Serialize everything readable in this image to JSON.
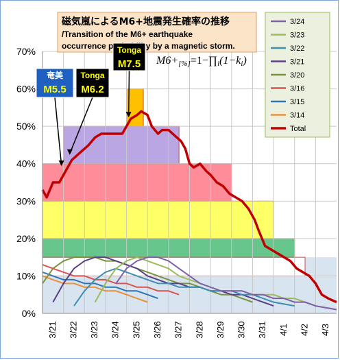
{
  "chart_data": {
    "type": "line",
    "title": "磁気嵐によるM6+地震発生確率の推移",
    "subtitle": "/Transition of the M6+ earthquake occurrence probability by a magnetic storm.",
    "formula": "M6+[%]=1−∏i(1−ki)",
    "formula_parts": {
      "main": "M6+",
      "sub": "[%]",
      "eq": "=1−∏",
      "sub2": "i",
      "tail": "(1−k",
      "sub3": "i",
      "end": ")"
    },
    "ylim": [
      0,
      70
    ],
    "y_ticks": [
      "0%",
      "10%",
      "20%",
      "30%",
      "40%",
      "50%",
      "60%",
      "70%"
    ],
    "x_ticks": [
      "3/21",
      "3/22",
      "3/23",
      "3/24",
      "3/25",
      "3/26",
      "3/27",
      "3/28",
      "3/29",
      "3/30",
      "3/31",
      "4/1",
      "4/2",
      "4/3"
    ],
    "x_tick_positions": [
      0.5,
      1.5,
      2.5,
      3.5,
      4.5,
      5.5,
      6.5,
      7.5,
      8.5,
      9.5,
      10.5,
      11.5,
      12.5,
      13.5
    ],
    "xlim": [
      0,
      14
    ],
    "grid": true,
    "legend_position": "top-right",
    "legend": [
      {
        "name": "3/24",
        "color": "#7f5fa8"
      },
      {
        "name": "3/23",
        "color": "#9bbb59"
      },
      {
        "name": "3/22",
        "color": "#3d8fb0"
      },
      {
        "name": "3/21",
        "color": "#5a3f86"
      },
      {
        "name": "3/20",
        "color": "#77933c"
      },
      {
        "name": "3/16",
        "color": "#d9534f"
      },
      {
        "name": "3/15",
        "color": "#2e75b6"
      },
      {
        "name": "3/14",
        "color": "#e6913a"
      },
      {
        "name": "Total",
        "color": "#c00000"
      }
    ],
    "bands": [
      {
        "from": 0,
        "to": 14,
        "y0": 0,
        "y1": 15,
        "fill": "#d8e4f0"
      },
      {
        "from": 0,
        "to": 12.5,
        "y0": 10,
        "y1": 15,
        "fill": "#ffffff"
      },
      {
        "from": 0,
        "to": 12.0,
        "y0": 15,
        "y1": 20,
        "fill": "#66c68c"
      },
      {
        "from": 0,
        "to": 11.0,
        "y0": 20,
        "y1": 30,
        "fill": "#ffff66"
      },
      {
        "from": 0,
        "to": 9.0,
        "y0": 30,
        "y1": 40,
        "fill": "#ff8c99"
      },
      {
        "from": 1.0,
        "to": 6.5,
        "y0": 40,
        "y1": 50,
        "fill": "#b9a6e3"
      },
      {
        "from": 4.0,
        "to": 4.8,
        "y0": 50,
        "y1": 60,
        "fill": "#ffc000"
      }
    ],
    "total": {
      "x": [
        0,
        0.2,
        0.5,
        0.8,
        1.0,
        1.2,
        1.4,
        1.6,
        1.8,
        2.0,
        2.2,
        2.5,
        2.8,
        3.2,
        3.5,
        3.8,
        4.0,
        4.2,
        4.5,
        4.7,
        5.0,
        5.2,
        5.5,
        5.7,
        6.0,
        6.2,
        6.4,
        6.6,
        6.8,
        7.0,
        7.2,
        7.5,
        7.8,
        8.0,
        8.3,
        8.6,
        8.9,
        9.2,
        9.5,
        9.8,
        10.1,
        10.3,
        10.6,
        10.9,
        11.2,
        11.5,
        11.8,
        12.1,
        12.4,
        12.7,
        13.0,
        13.3,
        13.6,
        14.0
      ],
      "y": [
        33,
        31,
        35,
        35,
        37,
        39,
        41,
        42,
        43,
        44,
        45,
        47,
        48,
        48,
        48,
        48,
        50,
        52,
        53,
        54,
        53,
        50,
        48,
        49,
        49,
        48,
        47,
        46,
        44,
        40,
        39,
        40,
        38,
        37,
        35,
        34,
        32,
        31,
        30,
        28,
        25,
        22,
        18,
        17,
        16,
        15,
        14,
        12,
        11,
        10,
        8,
        5,
        4,
        3
      ]
    },
    "series": [
      {
        "name": "3/24",
        "color": "#7f5fa8",
        "x": [
          3.5,
          4.0,
          4.5,
          5.0,
          5.5,
          6.0,
          6.5,
          7.0,
          7.5,
          8.0,
          8.5,
          9.0,
          9.5,
          10.0,
          10.5,
          11.0,
          11.5,
          12.0,
          12.5,
          13.0,
          14.0
        ],
        "y": [
          8,
          12,
          14,
          15,
          15,
          14,
          12,
          10,
          8,
          7,
          6,
          6,
          6,
          5,
          5,
          4,
          4,
          3,
          3,
          2,
          1
        ]
      },
      {
        "name": "3/23",
        "color": "#9bbb59",
        "x": [
          2.5,
          3.0,
          3.5,
          4.0,
          4.5,
          5.0,
          5.5,
          6.0,
          6.5,
          7.0,
          7.5,
          8.0,
          8.5,
          9.0,
          9.5,
          10.0,
          10.5,
          11.0,
          11.5,
          12.0,
          12.5,
          13.0,
          14.0
        ],
        "y": [
          3,
          8,
          12,
          14,
          15,
          14,
          13,
          12,
          10,
          9,
          8,
          7,
          6,
          6,
          6,
          5,
          5,
          5,
          4,
          4,
          3,
          2,
          1
        ]
      },
      {
        "name": "3/22",
        "color": "#3d8fb0",
        "x": [
          1.5,
          2.0,
          2.5,
          3.0,
          3.5,
          4.0,
          4.5,
          5.0,
          5.5,
          6.0,
          6.5,
          7.0,
          7.5,
          8.0,
          8.5,
          9.0,
          9.5,
          10.0,
          10.5,
          11.0,
          12.0
        ],
        "y": [
          2,
          6,
          9,
          11,
          12,
          11,
          10,
          9,
          8,
          8,
          7,
          7,
          7,
          6,
          6,
          6,
          5,
          5,
          4,
          3,
          2
        ]
      },
      {
        "name": "3/21",
        "color": "#5a3f86",
        "x": [
          0.5,
          1.0,
          1.5,
          2.0,
          2.5,
          3.0,
          3.5,
          4.0,
          4.5,
          5.0,
          5.5,
          6.0,
          6.5,
          7.0,
          7.5,
          8.0,
          8.5,
          9.0,
          9.5,
          10.0,
          10.5,
          11.0
        ],
        "y": [
          3,
          8,
          12,
          14,
          15,
          15,
          14,
          13,
          12,
          10,
          9,
          8,
          8,
          7,
          7,
          6,
          6,
          5,
          5,
          4,
          3,
          2
        ]
      },
      {
        "name": "3/20",
        "color": "#77933c",
        "x": [
          0.0,
          0.5,
          1.0,
          1.5,
          2.0,
          2.5,
          3.0,
          3.5,
          4.0,
          4.5,
          5.0,
          5.5,
          6.0,
          6.5,
          7.0,
          7.5,
          8.0,
          8.5,
          9.0,
          10.0
        ],
        "y": [
          8,
          12,
          14,
          15,
          15,
          15,
          14,
          14,
          13,
          12,
          11,
          10,
          9,
          8,
          8,
          7,
          6,
          5,
          5,
          3
        ]
      },
      {
        "name": "3/16",
        "color": "#d9534f",
        "x": [
          0.0,
          0.5,
          1.0,
          1.5,
          2.0,
          2.5,
          3.0,
          3.5,
          4.0,
          4.5,
          5.0,
          5.5,
          6.0,
          6.5
        ],
        "y": [
          13,
          12,
          11,
          10,
          10,
          9,
          9,
          8,
          8,
          7,
          7,
          6,
          6,
          5
        ]
      },
      {
        "name": "3/15",
        "color": "#2e75b6",
        "x": [
          0.0,
          0.5,
          1.0,
          1.5,
          2.0,
          2.5,
          3.0,
          3.5,
          4.0,
          4.5,
          5.0,
          5.5
        ],
        "y": [
          11,
          10,
          9,
          9,
          8,
          8,
          7,
          7,
          6,
          6,
          5,
          4
        ]
      },
      {
        "name": "3/14",
        "color": "#e6913a",
        "x": [
          0.0,
          0.5,
          1.0,
          1.5,
          2.0,
          2.5,
          3.0,
          3.5,
          4.0,
          4.5,
          5.0
        ],
        "y": [
          10,
          9,
          8,
          8,
          7,
          7,
          6,
          6,
          5,
          4,
          3
        ]
      }
    ],
    "annotations": [
      {
        "label": "奄美",
        "mag": "M5.5",
        "x": 0.9,
        "y": 39,
        "box": "blue"
      },
      {
        "label": "Tonga",
        "mag": "M6.2",
        "x": 1.3,
        "y": 42,
        "box": "black"
      },
      {
        "label": "Tonga",
        "mag": "M7.5",
        "x": 4.1,
        "y": 52,
        "box": "black"
      }
    ]
  }
}
